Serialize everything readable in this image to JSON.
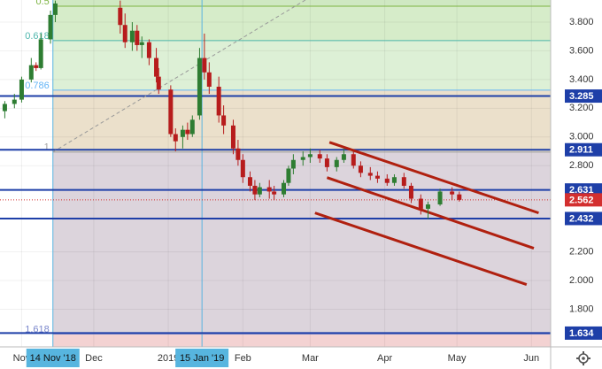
{
  "chart_data": {
    "type": "candlestick",
    "x": [
      "2018-10-25",
      "2018-10-29",
      "2018-11-01",
      "2018-11-05",
      "2018-11-07",
      "2018-11-09",
      "2018-11-13",
      "2018-11-15",
      "2018-12-12",
      "2018-12-14",
      "2018-12-17",
      "2018-12-19",
      "2018-12-21",
      "2018-12-24",
      "2018-12-27",
      "2018-12-28",
      "2019-01-02",
      "2019-01-04",
      "2019-01-07",
      "2019-01-09",
      "2019-01-11",
      "2019-01-14",
      "2019-01-16",
      "2019-01-18",
      "2019-01-22",
      "2019-01-24",
      "2019-01-28",
      "2019-01-30",
      "2019-02-01",
      "2019-02-04",
      "2019-02-06",
      "2019-02-08",
      "2019-02-12",
      "2019-02-14",
      "2019-02-18",
      "2019-02-20",
      "2019-02-22",
      "2019-02-26",
      "2019-03-01",
      "2019-03-05",
      "2019-03-08",
      "2019-03-12",
      "2019-03-15",
      "2019-03-19",
      "2019-03-22",
      "2019-03-26",
      "2019-03-29",
      "2019-04-02",
      "2019-04-05",
      "2019-04-09",
      "2019-04-12",
      "2019-04-16",
      "2019-04-19",
      "2019-04-24",
      "2019-04-29",
      "2019-05-02"
    ],
    "open": [
      3.18,
      3.23,
      3.26,
      3.4,
      3.5,
      3.48,
      3.68,
      3.85,
      3.9,
      3.78,
      3.66,
      3.74,
      3.64,
      3.66,
      3.55,
      3.42,
      3.33,
      3.02,
      3.0,
      3.05,
      3.02,
      3.15,
      3.55,
      3.45,
      3.35,
      3.15,
      3.08,
      2.92,
      2.84,
      2.72,
      2.66,
      2.6,
      2.65,
      2.62,
      2.6,
      2.68,
      2.78,
      2.84,
      2.86,
      2.88,
      2.85,
      2.79,
      2.84,
      2.88,
      2.8,
      2.75,
      2.73,
      2.71,
      2.68,
      2.72,
      2.66,
      2.57,
      2.5,
      2.53,
      2.62,
      2.6
    ],
    "high": [
      3.25,
      3.3,
      3.42,
      3.55,
      3.52,
      3.72,
      3.88,
      3.95,
      3.95,
      3.86,
      3.8,
      3.78,
      3.7,
      3.68,
      3.62,
      3.48,
      3.36,
      3.06,
      3.08,
      3.1,
      3.15,
      3.62,
      3.72,
      3.52,
      3.42,
      3.22,
      3.12,
      2.98,
      2.88,
      2.76,
      2.7,
      2.68,
      2.7,
      2.66,
      2.7,
      2.8,
      2.88,
      2.9,
      2.92,
      2.91,
      2.88,
      2.86,
      2.92,
      2.9,
      2.83,
      2.79,
      2.76,
      2.74,
      2.74,
      2.75,
      2.68,
      2.6,
      2.55,
      2.64,
      2.65,
      2.62
    ],
    "low": [
      3.13,
      3.2,
      3.24,
      3.38,
      3.46,
      3.47,
      3.65,
      3.8,
      3.72,
      3.62,
      3.6,
      3.6,
      3.55,
      3.5,
      3.38,
      3.3,
      3.0,
      2.9,
      2.92,
      2.98,
      3.0,
      3.12,
      3.4,
      3.3,
      3.1,
      3.02,
      2.88,
      2.8,
      2.68,
      2.62,
      2.56,
      2.58,
      2.57,
      2.56,
      2.58,
      2.66,
      2.74,
      2.8,
      2.82,
      2.82,
      2.76,
      2.76,
      2.82,
      2.78,
      2.72,
      2.7,
      2.68,
      2.66,
      2.66,
      2.64,
      2.54,
      2.46,
      2.43,
      2.52,
      2.56,
      2.55
    ],
    "close": [
      3.23,
      3.26,
      3.4,
      3.5,
      3.48,
      3.68,
      3.85,
      3.93,
      3.78,
      3.66,
      3.74,
      3.64,
      3.66,
      3.55,
      3.42,
      3.33,
      3.02,
      2.97,
      3.05,
      3.02,
      3.12,
      3.55,
      3.45,
      3.35,
      3.15,
      3.08,
      2.92,
      2.84,
      2.72,
      2.66,
      2.6,
      2.65,
      2.62,
      2.6,
      2.68,
      2.78,
      2.84,
      2.86,
      2.88,
      2.85,
      2.79,
      2.84,
      2.88,
      2.8,
      2.75,
      2.73,
      2.71,
      2.68,
      2.72,
      2.66,
      2.57,
      2.5,
      2.53,
      2.62,
      2.6,
      2.562
    ],
    "up_color": "#2e7d32",
    "down_color": "#b71c1c",
    "xlim": [
      "2018-10-23",
      "2019-06-09"
    ],
    "ylim": [
      1.538,
      3.954
    ],
    "yticks": [
      {
        "value": 3.8,
        "label": "3.800"
      },
      {
        "value": 3.6,
        "label": "3.600"
      },
      {
        "value": 3.4,
        "label": "3.400"
      },
      {
        "value": 3.2,
        "label": "3.200"
      },
      {
        "value": 3.0,
        "label": "3.000"
      },
      {
        "value": 2.8,
        "label": "2.800"
      },
      {
        "value": 2.2,
        "label": "2.200"
      },
      {
        "value": 2.0,
        "label": "2.000"
      },
      {
        "value": 1.8,
        "label": "1.800"
      }
    ],
    "xticks": [
      {
        "value": "2018-11-01",
        "label": "Nov"
      },
      {
        "value": "2018-12-01",
        "label": "Dec"
      },
      {
        "value": "2019-01-01",
        "label": "2019"
      },
      {
        "value": "2019-02-01",
        "label": "Feb"
      },
      {
        "value": "2019-03-01",
        "label": "Mar"
      },
      {
        "value": "2019-04-01",
        "label": "Apr"
      },
      {
        "value": "2019-05-01",
        "label": "May"
      },
      {
        "value": "2019-06-01",
        "label": "Jun"
      }
    ],
    "markers": [
      {
        "x": "2018-11-14",
        "label": "14 Nov '18"
      },
      {
        "x": "2019-01-15",
        "label": "15 Jan '19"
      }
    ],
    "fib_start": "2018-11-14",
    "fib_levels": [
      {
        "level": 0.5,
        "price": 3.911,
        "color": "#7cb342",
        "fill": "#d6ecc9"
      },
      {
        "level": 0.618,
        "price": 3.671,
        "color": "#4db6ac",
        "fill": "#ddf0d6"
      },
      {
        "level": 0.786,
        "price": 3.326,
        "color": "#64b5f6",
        "fill": "#ebe0cb"
      },
      {
        "level": 1,
        "price": 2.895,
        "color": "#9e9e9e",
        "fill": "#dcd4dc"
      },
      {
        "level": 1.618,
        "price": 1.628,
        "color": "#7986cb",
        "fill": "#f3d2d2"
      }
    ],
    "fib_top_fill": "#cfe8c2",
    "levels": [
      {
        "value": 3.285,
        "color": "#1e3fa8"
      },
      {
        "value": 2.911,
        "color": "#1e3fa8"
      },
      {
        "value": 2.631,
        "color": "#1e3fa8"
      },
      {
        "value": 2.432,
        "color": "#1e3fa8"
      },
      {
        "value": 1.634,
        "color": "#1e3fa8"
      }
    ],
    "last_price": {
      "value": 2.562,
      "color": "#d32f2f"
    },
    "trendlines": [
      {
        "x": [
          "2019-03-09",
          "2019-06-04"
        ],
        "y": [
          2.963,
          2.471
        ],
        "color": "#b0200f",
        "dashed": false
      },
      {
        "x": [
          "2019-03-08",
          "2019-06-02"
        ],
        "y": [
          2.717,
          2.225
        ],
        "color": "#b0200f",
        "dashed": false
      },
      {
        "x": [
          "2019-03-03",
          "2019-05-30"
        ],
        "y": [
          2.471,
          1.972
        ],
        "color": "#b0200f",
        "dashed": false
      },
      {
        "x": [
          "2018-11-14",
          "2019-02-27"
        ],
        "y": [
          2.895,
          3.954
        ],
        "color": "#999999",
        "dashed": true
      }
    ],
    "grid": true
  }
}
